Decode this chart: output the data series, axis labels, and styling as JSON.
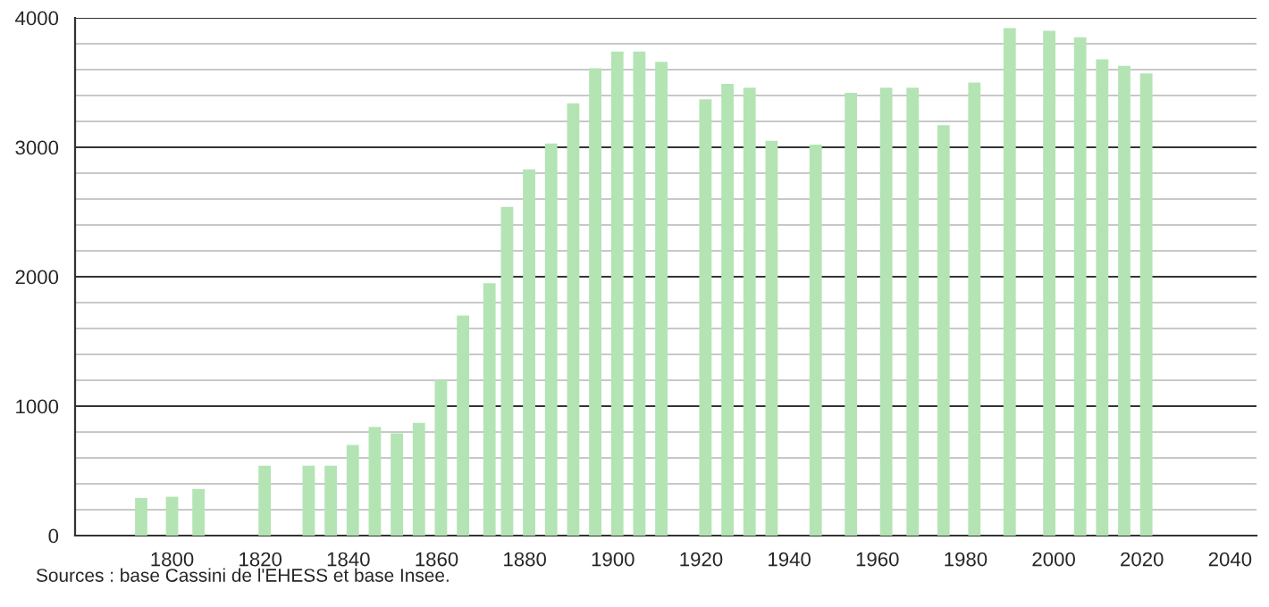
{
  "chart_data": {
    "type": "bar",
    "x": [
      1793,
      1800,
      1806,
      1821,
      1831,
      1836,
      1841,
      1846,
      1851,
      1856,
      1861,
      1866,
      1872,
      1876,
      1881,
      1886,
      1891,
      1896,
      1901,
      1906,
      1911,
      1921,
      1926,
      1931,
      1936,
      1946,
      1954,
      1962,
      1968,
      1975,
      1982,
      1990,
      1999,
      2006,
      2011,
      2016,
      2021
    ],
    "values": [
      290,
      300,
      360,
      540,
      540,
      540,
      700,
      840,
      790,
      870,
      1200,
      1700,
      1950,
      2540,
      2830,
      3030,
      3340,
      3610,
      3740,
      3740,
      3660,
      3370,
      3490,
      3460,
      3050,
      3020,
      3420,
      3460,
      3460,
      3170,
      3500,
      3920,
      3900,
      3850,
      3680,
      3630,
      3570
    ],
    "color": "#b4e4b4",
    "xlim": [
      1778,
      2046
    ],
    "xticks": [
      1800,
      1820,
      1840,
      1860,
      1880,
      1900,
      1920,
      1940,
      1960,
      1980,
      2000,
      2020,
      2040
    ],
    "ylim": [
      0,
      4000
    ],
    "yticks": [
      0,
      {
        "value": 200,
        "label": null
      },
      {
        "value": 400,
        "label": null
      },
      {
        "value": 600,
        "label": null
      },
      {
        "value": 800,
        "label": null
      },
      1000,
      {
        "value": 1200,
        "label": null
      },
      {
        "value": 1400,
        "label": null
      },
      {
        "value": 1600,
        "label": null
      },
      {
        "value": 1800,
        "label": null
      },
      2000,
      {
        "value": 2200,
        "label": null
      },
      {
        "value": 2400,
        "label": null
      },
      {
        "value": 2600,
        "label": null
      },
      {
        "value": 2800,
        "label": null
      },
      3000,
      {
        "value": 3200,
        "label": null
      },
      {
        "value": 3400,
        "label": null
      },
      {
        "value": 3600,
        "label": null
      },
      {
        "value": 3800,
        "label": null
      },
      4000
    ],
    "grid": "y",
    "annotations": [
      "Sources : base Cassini de l'EHESS et base Insee."
    ]
  }
}
